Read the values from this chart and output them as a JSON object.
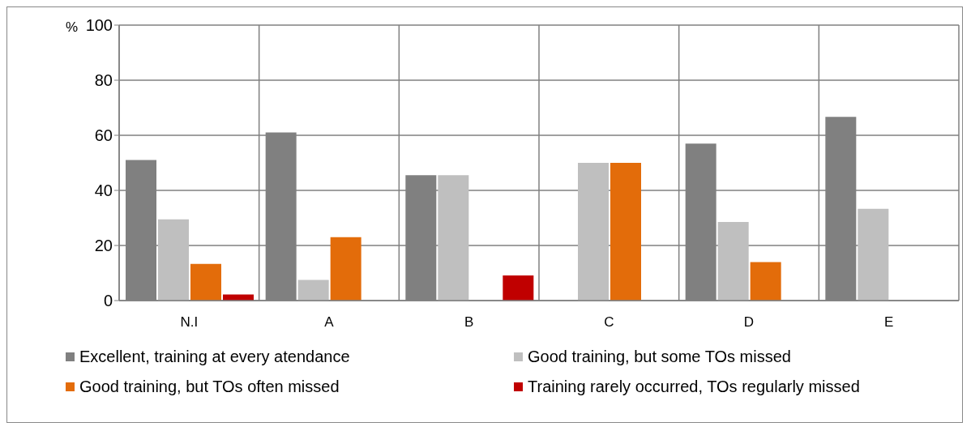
{
  "chart_data": {
    "type": "bar",
    "ylabel": "%",
    "categories": [
      "N.I",
      "A",
      "B",
      "C",
      "D",
      "E"
    ],
    "series": [
      {
        "name": "Excellent, training at every atendance",
        "color": "#808080",
        "values": [
          51,
          61,
          45.5,
          0,
          57,
          66.7
        ]
      },
      {
        "name": "Good training, but some TOs missed",
        "color": "#bfbfbf",
        "values": [
          29.5,
          7.5,
          45.5,
          50,
          28.5,
          33.3
        ]
      },
      {
        "name": "Good training, but TOs often missed",
        "color": "#e36c0a",
        "values": [
          13.3,
          23,
          0,
          50,
          14,
          0
        ]
      },
      {
        "name": "Training rarely occurred, TOs regularly missed",
        "color": "#c00000",
        "values": [
          2.2,
          0,
          9.1,
          0,
          0,
          0
        ]
      }
    ],
    "ylim": [
      0,
      100
    ],
    "yticks": [
      0,
      20,
      40,
      60,
      80,
      100
    ],
    "grid": true,
    "legend": "bottom"
  }
}
